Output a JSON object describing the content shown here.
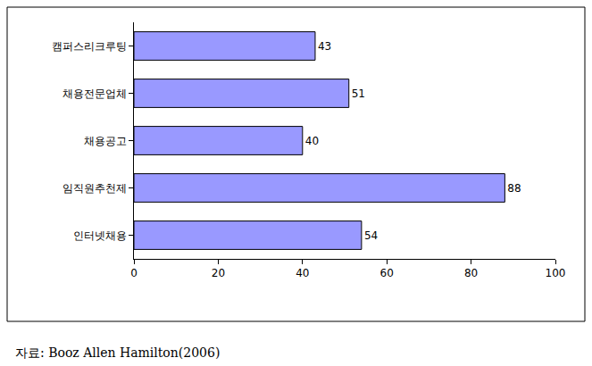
{
  "chart_data": {
    "type": "bar",
    "orientation": "horizontal",
    "categories": [
      "캠퍼스리크루팅",
      "채용전문업체",
      "채용공고",
      "임직원추천제",
      "인터넷채용"
    ],
    "values": [
      43,
      51,
      40,
      88,
      54
    ],
    "color": "#9999ff",
    "xlim": [
      0,
      100
    ],
    "xticks": [
      0,
      20,
      40,
      60,
      80,
      100
    ],
    "grid": false,
    "data_labels": true,
    "annotations": [
      "자료: Booz Allen Hamilton(2006)"
    ]
  }
}
